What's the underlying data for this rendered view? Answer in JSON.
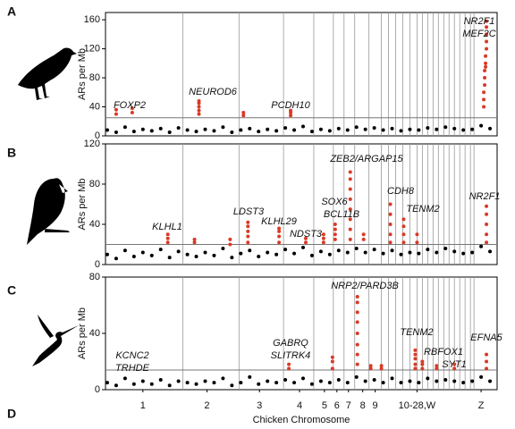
{
  "chart_data": [
    {
      "type": "scatter",
      "panel": "A",
      "ylabel": "ARs per Mb",
      "ylim": [
        0,
        170
      ],
      "yticks": [
        0,
        40,
        80,
        120,
        160
      ],
      "xlim": [
        0,
        440
      ],
      "threshold": 25,
      "xlines": [
        87,
        150,
        200,
        234,
        256,
        268,
        280,
        296,
        310,
        318,
        326,
        334,
        342,
        350,
        356,
        362,
        368,
        374,
        380,
        386,
        392,
        398,
        404,
        410,
        414
      ],
      "annotations": [
        "FOXP2",
        "NEUROD6",
        "PCDH10",
        "NR2F1",
        "MEF2C"
      ],
      "series": [
        {
          "color": "#000000",
          "x": [
            2,
            12,
            22,
            32,
            42,
            52,
            62,
            72,
            82,
            92,
            102,
            112,
            122,
            132,
            142,
            152,
            162,
            172,
            182,
            192,
            202,
            212,
            222,
            232,
            242,
            252,
            262,
            272,
            282,
            292,
            302,
            312,
            322,
            332,
            342,
            352,
            362,
            372,
            382,
            392,
            402,
            412,
            422,
            432
          ],
          "values": [
            8,
            5,
            12,
            6,
            9,
            7,
            10,
            5,
            11,
            8,
            6,
            9,
            7,
            12,
            5,
            8,
            10,
            6,
            9,
            7,
            11,
            8,
            13,
            6,
            9,
            7,
            10,
            8,
            12,
            9,
            11,
            8,
            10,
            7,
            9,
            8,
            11,
            9,
            12,
            10,
            8,
            9,
            14,
            10
          ]
        },
        {
          "color": "#d93a26",
          "x": [
            12,
            12,
            30,
            30,
            105,
            105,
            105,
            105,
            105,
            155,
            155,
            208,
            208,
            208,
            425,
            425,
            425,
            426,
            426,
            426,
            427,
            427,
            427,
            428,
            428,
            428,
            428,
            428
          ],
          "values": [
            30,
            36,
            32,
            38,
            30,
            35,
            40,
            45,
            48,
            28,
            32,
            28,
            32,
            35,
            40,
            50,
            60,
            70,
            80,
            90,
            95,
            100,
            110,
            120,
            130,
            140,
            150,
            158
          ]
        }
      ]
    },
    {
      "type": "scatter",
      "panel": "B",
      "ylabel": "ARs per Mb",
      "ylim": [
        0,
        120
      ],
      "yticks": [
        0,
        40,
        80,
        120
      ],
      "xlim": [
        0,
        440
      ],
      "threshold": 20,
      "xlines": [
        87,
        150,
        200,
        234,
        256,
        268,
        280,
        296,
        310,
        318,
        326,
        334,
        342,
        350,
        356,
        362,
        368,
        374,
        380,
        386,
        392,
        398,
        404,
        410,
        414
      ],
      "annotations": [
        "KLHL1",
        "LDST3",
        "KLHL29",
        "NDST3",
        "SOX6",
        "BCL11B",
        "ZEB2/ARGAP15",
        "CDH8",
        "TENM2",
        "NR2F1"
      ],
      "series": [
        {
          "color": "#000000",
          "x": [
            2,
            12,
            22,
            32,
            42,
            52,
            62,
            72,
            82,
            92,
            102,
            112,
            122,
            132,
            142,
            152,
            162,
            172,
            182,
            192,
            202,
            212,
            222,
            232,
            242,
            252,
            262,
            272,
            282,
            292,
            302,
            312,
            322,
            332,
            342,
            352,
            362,
            372,
            382,
            392,
            402,
            412,
            422,
            432
          ],
          "values": [
            10,
            6,
            14,
            8,
            12,
            9,
            15,
            7,
            13,
            10,
            8,
            12,
            9,
            16,
            7,
            11,
            14,
            8,
            12,
            10,
            15,
            11,
            17,
            9,
            13,
            10,
            14,
            12,
            16,
            12,
            15,
            11,
            14,
            10,
            12,
            11,
            15,
            12,
            16,
            13,
            11,
            12,
            18,
            13
          ]
        },
        {
          "color": "#d93a26",
          "x": [
            70,
            70,
            70,
            100,
            100,
            140,
            140,
            160,
            160,
            160,
            160,
            160,
            195,
            195,
            195,
            195,
            225,
            225,
            245,
            245,
            245,
            258,
            258,
            258,
            258,
            275,
            275,
            275,
            275,
            275,
            275,
            275,
            275,
            290,
            290,
            320,
            320,
            320,
            320,
            320,
            335,
            335,
            335,
            335,
            350,
            350,
            428,
            428,
            428,
            428,
            428
          ],
          "values": [
            22,
            26,
            30,
            22,
            25,
            20,
            25,
            22,
            28,
            33,
            38,
            42,
            22,
            28,
            33,
            36,
            22,
            26,
            22,
            26,
            30,
            25,
            30,
            35,
            40,
            25,
            35,
            45,
            55,
            65,
            75,
            85,
            92,
            25,
            30,
            22,
            30,
            40,
            50,
            60,
            22,
            30,
            38,
            45,
            22,
            30,
            22,
            30,
            40,
            50,
            58
          ]
        }
      ]
    },
    {
      "type": "scatter",
      "panel": "C",
      "ylabel": "ARs per Mb",
      "ylim": [
        0,
        80
      ],
      "yticks": [
        0,
        40,
        80
      ],
      "xlim": [
        0,
        440
      ],
      "threshold": 14,
      "xlines": [
        87,
        150,
        200,
        234,
        256,
        268,
        280,
        296,
        310,
        318,
        326,
        334,
        342,
        350,
        356,
        362,
        368,
        374,
        380,
        386,
        392,
        398,
        404,
        410,
        414
      ],
      "annotations": [
        "KCNC2",
        "TRHDE",
        "GABRQ",
        "SLITRK4",
        "NRP2/PARD3B",
        "TENM2",
        "RBFOX1",
        "SYT1",
        "EFNA5"
      ],
      "xlabel": "Chicken Chromosome",
      "bottom_letter": "D",
      "xticks": [
        {
          "value": 42,
          "label": "1"
        },
        {
          "value": 114,
          "label": "2"
        },
        {
          "value": 173,
          "label": "3"
        },
        {
          "value": 218,
          "label": "4"
        },
        {
          "value": 246,
          "label": "5"
        },
        {
          "value": 260,
          "label": "6"
        },
        {
          "value": 273,
          "label": "7"
        },
        {
          "value": 289,
          "label": "8"
        },
        {
          "value": 303,
          "label": "9"
        },
        {
          "value": 350,
          "label": "10-28,W"
        },
        {
          "value": 422,
          "label": "Z"
        }
      ],
      "series": [
        {
          "color": "#000000",
          "x": [
            2,
            12,
            22,
            32,
            42,
            52,
            62,
            72,
            82,
            92,
            102,
            112,
            122,
            132,
            142,
            152,
            162,
            172,
            182,
            192,
            202,
            212,
            222,
            232,
            242,
            252,
            262,
            272,
            282,
            292,
            302,
            312,
            322,
            332,
            342,
            352,
            362,
            372,
            382,
            392,
            402,
            412,
            422,
            432
          ],
          "values": [
            5,
            3,
            8,
            4,
            6,
            4,
            7,
            3,
            6,
            5,
            4,
            6,
            5,
            8,
            3,
            5,
            9,
            4,
            6,
            5,
            7,
            5,
            8,
            4,
            6,
            5,
            7,
            5,
            9,
            6,
            7,
            5,
            8,
            5,
            6,
            5,
            8,
            6,
            7,
            6,
            5,
            6,
            9,
            6
          ]
        },
        {
          "color": "#d93a26",
          "x": [
            206,
            206,
            255,
            255,
            255,
            283,
            283,
            283,
            283,
            283,
            283,
            283,
            283,
            298,
            298,
            310,
            310,
            348,
            348,
            348,
            348,
            348,
            356,
            356,
            356,
            372,
            372,
            392,
            392,
            428,
            428,
            428
          ],
          "values": [
            15,
            18,
            15,
            20,
            23,
            18,
            25,
            32,
            40,
            48,
            55,
            62,
            66,
            15,
            17,
            15,
            17,
            15,
            18,
            22,
            25,
            28,
            15,
            18,
            20,
            15,
            17,
            15,
            18,
            15,
            20,
            25
          ]
        }
      ]
    }
  ]
}
